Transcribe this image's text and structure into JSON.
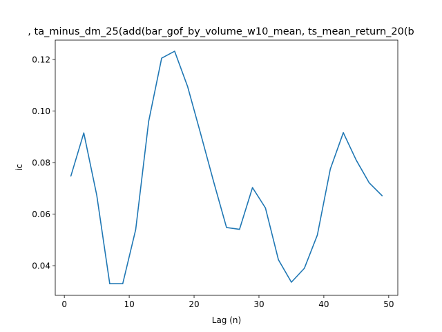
{
  "chart_data": {
    "type": "line",
    "title": ", ta_minus_dm_25(add(bar_gof_by_volume_w10_mean, ts_mean_return_20(b",
    "xlabel": "Lag (n)",
    "ylabel": "ic",
    "xlim": [
      -1.4,
      51.4
    ],
    "ylim": [
      0.0285,
      0.1275
    ],
    "x_ticks": [
      0,
      10,
      20,
      30,
      40,
      50
    ],
    "x_tick_labels": [
      "0",
      "10",
      "20",
      "30",
      "40",
      "50"
    ],
    "y_ticks": [
      0.04,
      0.06,
      0.08,
      0.1,
      0.12
    ],
    "y_tick_labels": [
      "0.04",
      "0.06",
      "0.08",
      "0.10",
      "0.12"
    ],
    "grid": false,
    "series": [
      {
        "color": "#1f77b4",
        "x": [
          1,
          3,
          5,
          7,
          9,
          11,
          13,
          15,
          17,
          19,
          21,
          23,
          25,
          27,
          29,
          31,
          33,
          35,
          37,
          39,
          41,
          43,
          45,
          47,
          49
        ],
        "y": [
          0.0747,
          0.0915,
          0.0673,
          0.033,
          0.033,
          0.054,
          0.096,
          0.1205,
          0.1232,
          0.1095,
          0.0913,
          0.0727,
          0.0548,
          0.0541,
          0.0703,
          0.0624,
          0.0423,
          0.0336,
          0.039,
          0.0519,
          0.0775,
          0.0916,
          0.0809,
          0.0721,
          0.0671
        ]
      }
    ]
  }
}
